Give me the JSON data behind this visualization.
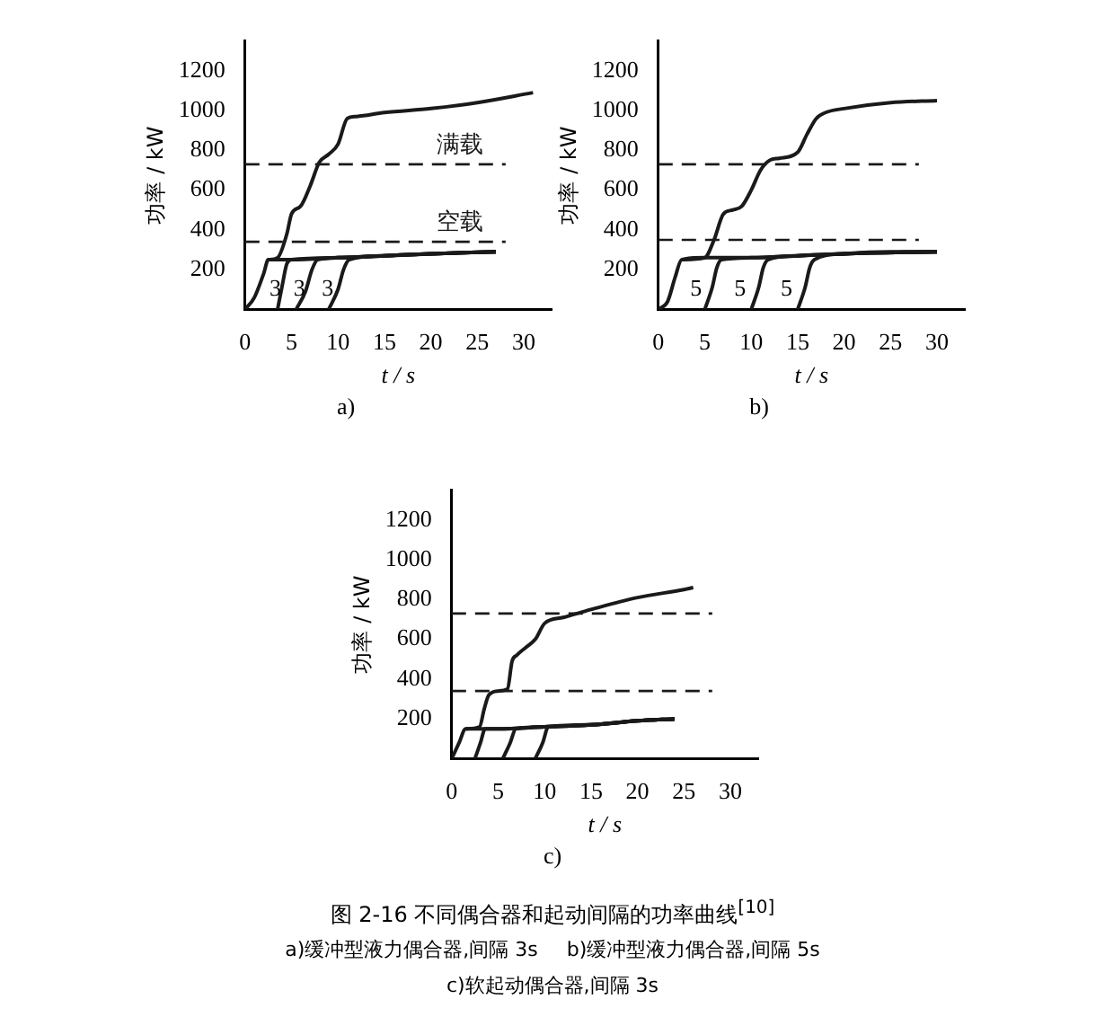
{
  "chart_data": [
    {
      "type": "line",
      "title": "a)",
      "xlabel": "t / s",
      "ylabel": "功率 / kW",
      "xlim": [
        0,
        33
      ],
      "xticks": [
        0,
        5,
        10,
        15,
        20,
        25,
        30
      ],
      "ylim": [
        0,
        1350
      ],
      "yticks": [
        200,
        400,
        600,
        800,
        1000,
        1200
      ],
      "grid": false,
      "marker": "none",
      "legend": false,
      "series": [
        {
          "color": "#1a1a1a",
          "x": [
            0,
            1,
            2,
            2.5,
            5,
            10,
            15,
            20,
            27
          ],
          "values": [
            0,
            60,
            180,
            250,
            250,
            260,
            270,
            280,
            290
          ]
        },
        {
          "color": "#1a1a1a",
          "x": [
            3.5,
            4,
            4.5,
            5,
            10,
            15,
            20,
            27
          ],
          "values": [
            0,
            120,
            230,
            250,
            260,
            270,
            280,
            290
          ]
        },
        {
          "color": "#1a1a1a",
          "x": [
            5.5,
            6.5,
            7.2,
            7.8,
            10,
            15,
            20,
            27
          ],
          "values": [
            0,
            90,
            200,
            250,
            260,
            270,
            280,
            290
          ]
        },
        {
          "color": "#1a1a1a",
          "x": [
            9,
            10,
            10.6,
            11.2,
            15,
            20,
            27
          ],
          "values": [
            0,
            100,
            200,
            250,
            270,
            280,
            290
          ]
        },
        {
          "color": "#1a1a1a",
          "x": [
            2.5,
            3.5,
            4.5,
            5,
            6,
            7,
            8,
            9,
            10,
            11,
            12,
            15,
            20,
            25,
            31
          ],
          "values": [
            250,
            260,
            380,
            480,
            520,
            620,
            740,
            780,
            830,
            960,
            970,
            990,
            1010,
            1040,
            1090
          ]
        }
      ],
      "ref_lines": [
        {
          "axis": "y",
          "value": 730,
          "label": "满载",
          "line_style": "dashed",
          "color": "#1a1a1a"
        },
        {
          "axis": "y",
          "value": 340,
          "label": "空载",
          "line_style": "dashed",
          "color": "#1a1a1a"
        }
      ],
      "annotations": [
        "3",
        "3",
        "3"
      ]
    },
    {
      "type": "line",
      "title": "b)",
      "xlabel": "t / s",
      "ylabel": "功率 / kW",
      "xlim": [
        0,
        33
      ],
      "xticks": [
        0,
        5,
        10,
        15,
        20,
        25,
        30
      ],
      "ylim": [
        0,
        1350
      ],
      "yticks": [
        200,
        400,
        600,
        800,
        1000,
        1200
      ],
      "grid": false,
      "marker": "none",
      "legend": false,
      "series": [
        {
          "color": "#1a1a1a",
          "x": [
            0,
            1,
            1.8,
            2.5,
            5,
            10,
            15,
            20,
            30
          ],
          "values": [
            0,
            40,
            160,
            250,
            260,
            260,
            270,
            280,
            290
          ]
        },
        {
          "color": "#1a1a1a",
          "x": [
            5,
            5.8,
            6.3,
            6.8,
            10,
            15,
            20,
            30
          ],
          "values": [
            0,
            110,
            210,
            250,
            260,
            270,
            280,
            290
          ]
        },
        {
          "color": "#1a1a1a",
          "x": [
            10,
            10.8,
            11.3,
            11.8,
            15,
            20,
            30
          ],
          "values": [
            0,
            110,
            210,
            250,
            270,
            280,
            290
          ]
        },
        {
          "color": "#1a1a1a",
          "x": [
            15,
            15.8,
            16.3,
            16.8,
            20,
            25,
            30
          ],
          "values": [
            0,
            110,
            210,
            250,
            280,
            290,
            290
          ]
        },
        {
          "color": "#1a1a1a",
          "x": [
            2.5,
            5,
            6,
            7,
            8,
            9,
            10,
            11,
            12,
            13,
            15,
            16,
            17,
            18,
            20,
            25,
            30
          ],
          "values": [
            250,
            260,
            350,
            480,
            500,
            520,
            600,
            700,
            750,
            760,
            790,
            880,
            960,
            990,
            1010,
            1040,
            1050
          ]
        }
      ],
      "ref_lines": [
        {
          "axis": "y",
          "value": 730,
          "line_style": "dashed",
          "color": "#1a1a1a"
        },
        {
          "axis": "y",
          "value": 350,
          "line_style": "dashed",
          "color": "#1a1a1a"
        }
      ],
      "annotations": [
        "5",
        "5",
        "5"
      ]
    },
    {
      "type": "line",
      "title": "c)",
      "xlabel": "t / s",
      "ylabel": "功率 / kW",
      "xlim": [
        0,
        33
      ],
      "xticks": [
        0,
        5,
        10,
        15,
        20,
        25,
        30
      ],
      "ylim": [
        0,
        1350
      ],
      "yticks": [
        200,
        400,
        600,
        800,
        1000,
        1200
      ],
      "grid": false,
      "marker": "none",
      "legend": false,
      "series": [
        {
          "color": "#1a1a1a",
          "x": [
            0,
            0.8,
            1.5,
            5,
            10,
            15,
            20,
            24
          ],
          "values": [
            0,
            80,
            150,
            150,
            160,
            170,
            190,
            200
          ]
        },
        {
          "color": "#1a1a1a",
          "x": [
            2.5,
            3.1,
            3.6,
            5,
            10,
            15,
            20,
            24
          ],
          "values": [
            0,
            80,
            150,
            150,
            160,
            170,
            190,
            200
          ]
        },
        {
          "color": "#1a1a1a",
          "x": [
            5.5,
            6.3,
            6.9,
            10,
            15,
            20,
            24
          ],
          "values": [
            0,
            80,
            150,
            160,
            170,
            190,
            200
          ]
        },
        {
          "color": "#1a1a1a",
          "x": [
            9,
            9.8,
            10.4,
            15,
            20,
            24
          ],
          "values": [
            0,
            80,
            160,
            170,
            190,
            200
          ]
        },
        {
          "color": "#1a1a1a",
          "x": [
            1.5,
            3,
            3.5,
            4,
            5,
            6,
            6.5,
            7,
            8,
            9,
            10,
            12,
            15,
            20,
            25,
            26
          ],
          "values": [
            150,
            160,
            250,
            320,
            340,
            350,
            490,
            520,
            560,
            600,
            680,
            710,
            750,
            810,
            850,
            860
          ]
        }
      ],
      "ref_lines": [
        {
          "axis": "y",
          "value": 730,
          "line_style": "dashed",
          "color": "#1a1a1a"
        },
        {
          "axis": "y",
          "value": 340,
          "line_style": "dashed",
          "color": "#1a1a1a"
        }
      ]
    },
    {
      "type": "other",
      "title": "图 2-16  不同偶合器和起动间隔的功率曲线$^{[10]}$",
      "annotations": [
        "a)缓冲型液力偶合器,间隔 3s",
        "b)缓冲型液力偶合器,间隔 5s",
        "c)软起动偶合器,间隔 3s"
      ]
    }
  ]
}
